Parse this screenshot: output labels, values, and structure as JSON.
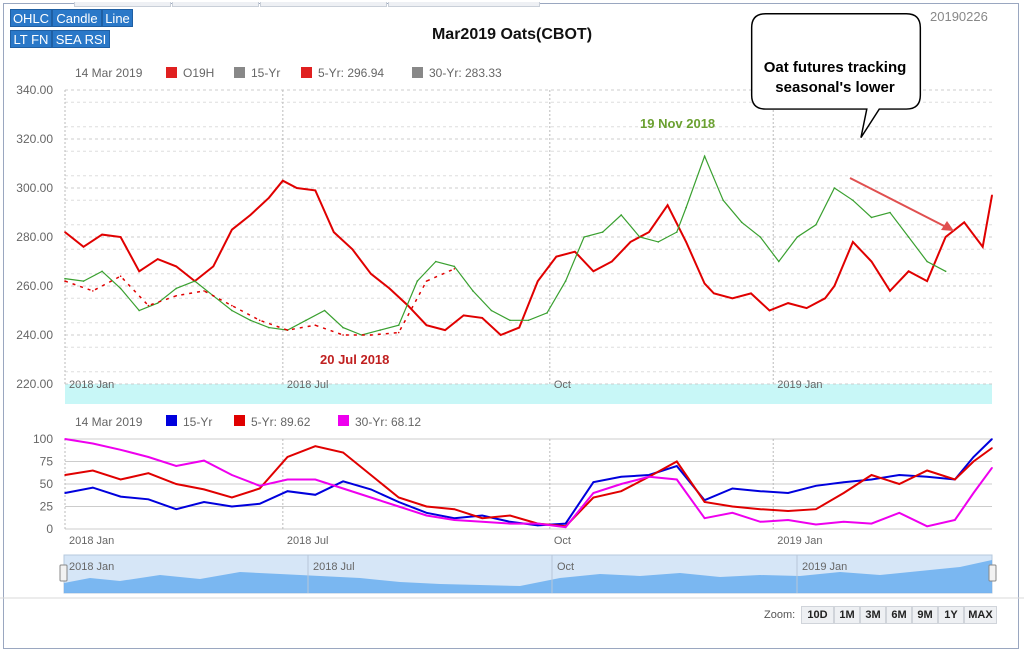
{
  "toolbar": {
    "row1": [
      "OHLC",
      "Candle",
      "Line"
    ],
    "row2": [
      "LT FN",
      "SEA RSI"
    ]
  },
  "title": "Mar2019 Oats(CBOT)",
  "date_code": "20190226",
  "callout": {
    "line1": "Oat futures tracking",
    "line2": "seasonal's lower"
  },
  "zoom": {
    "label": "Zoom:",
    "buttons": [
      "10D",
      "1M",
      "3M",
      "6M",
      "9M",
      "1Y",
      "MAX"
    ]
  },
  "chart_data": [
    {
      "type": "line",
      "panel": "price",
      "legend": {
        "date": "14 Mar 2019",
        "items": [
          {
            "label": "O19H",
            "color": "#e02020"
          },
          {
            "label": "15-Yr",
            "color": "#888888"
          },
          {
            "label": "5-Yr: 296.94",
            "color": "#e02020"
          },
          {
            "label": "30-Yr: 283.33",
            "color": "#888888"
          }
        ]
      },
      "y_ticks": [
        "340.00",
        "320.00",
        "300.00",
        "280.00",
        "260.00",
        "240.00",
        "220.00"
      ],
      "ylim": [
        220,
        340
      ],
      "x_ticks": [
        {
          "label": "2018 Jan",
          "x": 0
        },
        {
          "label": "2018 Jul",
          "x": 0.235
        },
        {
          "label": "Oct",
          "x": 0.523
        },
        {
          "label": "2019 Jan",
          "x": 0.764
        }
      ],
      "annotations": [
        {
          "text": "20 Jul 2018",
          "color": "#c02020"
        },
        {
          "text": "19 Nov 2018",
          "color": "#6aa030"
        }
      ],
      "series": [
        {
          "name": "5-Yr",
          "color": "#e00000",
          "x": [
            0,
            0.02,
            0.04,
            0.06,
            0.08,
            0.1,
            0.12,
            0.14,
            0.16,
            0.18,
            0.2,
            0.22,
            0.235,
            0.25,
            0.27,
            0.29,
            0.31,
            0.33,
            0.35,
            0.37,
            0.39,
            0.41,
            0.43,
            0.45,
            0.47,
            0.49,
            0.51,
            0.53,
            0.55,
            0.57,
            0.59,
            0.61,
            0.63,
            0.65,
            0.67,
            0.69,
            0.7,
            0.72,
            0.74,
            0.76,
            0.78,
            0.8,
            0.82,
            0.83,
            0.85,
            0.87,
            0.89,
            0.91,
            0.93,
            0.95,
            0.97,
            0.99,
            1.0
          ],
          "y": [
            282,
            276,
            281,
            280,
            266,
            271,
            268,
            262,
            268,
            283,
            289,
            296,
            303,
            300,
            299,
            282,
            275,
            265,
            259,
            252,
            244,
            242,
            248,
            247,
            240,
            243,
            262,
            272,
            274,
            266,
            270,
            278,
            282,
            293,
            278,
            261,
            257,
            255,
            257,
            250,
            253,
            251,
            255,
            260,
            278,
            270,
            258,
            266,
            262,
            280,
            286,
            276,
            297
          ]
        },
        {
          "name": "O19H",
          "color": "#3aa030",
          "x": [
            0.0,
            0.02,
            0.04,
            0.06,
            0.08,
            0.1,
            0.12,
            0.14,
            0.16,
            0.18,
            0.2,
            0.22,
            0.24,
            0.26,
            0.28,
            0.3,
            0.32,
            0.34,
            0.36,
            0.38,
            0.4,
            0.42,
            0.44,
            0.46,
            0.48,
            0.5,
            0.52,
            0.54,
            0.56,
            0.58,
            0.6,
            0.62,
            0.64,
            0.66,
            0.67,
            0.69,
            0.71,
            0.73,
            0.75,
            0.77,
            0.79,
            0.81,
            0.83,
            0.85,
            0.87,
            0.89,
            0.91,
            0.93,
            0.95
          ],
          "y": [
            263,
            262,
            266,
            259,
            250,
            253,
            259,
            262,
            256,
            250,
            246,
            243,
            242,
            246,
            250,
            243,
            240,
            242,
            244,
            262,
            270,
            268,
            258,
            250,
            246,
            246,
            249,
            262,
            280,
            282,
            289,
            280,
            278,
            282,
            292,
            313,
            295,
            286,
            280,
            270,
            280,
            285,
            300,
            295,
            288,
            290,
            280,
            270,
            266
          ]
        },
        {
          "name": "30-Yr",
          "color": "#e00000",
          "x": [
            0.0,
            0.03,
            0.06,
            0.09,
            0.12,
            0.15,
            0.18,
            0.21,
            0.24,
            0.27,
            0.3,
            0.33,
            0.36,
            0.39,
            0.42
          ],
          "y": [
            262,
            258,
            264,
            252,
            256,
            258,
            252,
            246,
            242,
            244,
            240,
            240,
            241,
            262,
            267
          ]
        }
      ]
    },
    {
      "type": "line",
      "panel": "seasonal-rsi",
      "legend": {
        "date": "14 Mar 2019",
        "items": [
          {
            "label": "15-Yr",
            "color": "#0000dd"
          },
          {
            "label": "5-Yr: 89.62",
            "color": "#e00000"
          },
          {
            "label": "30-Yr: 68.12",
            "color": "#ee00ee"
          }
        ]
      },
      "y_ticks": [
        "100",
        "75",
        "50",
        "25",
        "0"
      ],
      "ylim": [
        0,
        100
      ],
      "series": [
        {
          "name": "15-Yr",
          "color": "#0000dd",
          "x": [
            0,
            0.03,
            0.06,
            0.09,
            0.12,
            0.15,
            0.18,
            0.21,
            0.24,
            0.27,
            0.3,
            0.33,
            0.36,
            0.39,
            0.42,
            0.45,
            0.48,
            0.51,
            0.54,
            0.57,
            0.6,
            0.63,
            0.66,
            0.69,
            0.72,
            0.75,
            0.78,
            0.81,
            0.84,
            0.87,
            0.9,
            0.93,
            0.96,
            0.98,
            1.0
          ],
          "y": [
            40,
            46,
            36,
            33,
            22,
            30,
            25,
            28,
            42,
            38,
            53,
            44,
            30,
            18,
            12,
            15,
            8,
            4,
            6,
            52,
            58,
            60,
            70,
            32,
            45,
            42,
            40,
            48,
            52,
            55,
            60,
            58,
            55,
            80,
            100
          ]
        },
        {
          "name": "5-Yr",
          "color": "#e00000",
          "x": [
            0,
            0.03,
            0.06,
            0.09,
            0.12,
            0.15,
            0.18,
            0.21,
            0.24,
            0.27,
            0.3,
            0.33,
            0.36,
            0.39,
            0.42,
            0.45,
            0.48,
            0.51,
            0.54,
            0.57,
            0.6,
            0.63,
            0.66,
            0.69,
            0.72,
            0.75,
            0.78,
            0.81,
            0.84,
            0.87,
            0.9,
            0.93,
            0.96,
            0.98,
            1.0
          ],
          "y": [
            60,
            65,
            55,
            62,
            50,
            44,
            35,
            45,
            80,
            92,
            85,
            60,
            35,
            25,
            22,
            12,
            15,
            6,
            3,
            35,
            42,
            58,
            75,
            30,
            25,
            22,
            20,
            22,
            40,
            60,
            50,
            65,
            55,
            75,
            90
          ]
        },
        {
          "name": "30-Yr",
          "color": "#ee00ee",
          "x": [
            0,
            0.03,
            0.06,
            0.09,
            0.12,
            0.15,
            0.18,
            0.21,
            0.24,
            0.27,
            0.3,
            0.33,
            0.36,
            0.39,
            0.42,
            0.45,
            0.48,
            0.51,
            0.54,
            0.57,
            0.6,
            0.63,
            0.66,
            0.69,
            0.72,
            0.75,
            0.78,
            0.81,
            0.84,
            0.87,
            0.9,
            0.93,
            0.96,
            0.98,
            1.0
          ],
          "y": [
            100,
            95,
            88,
            80,
            70,
            76,
            60,
            48,
            55,
            55,
            45,
            35,
            25,
            15,
            10,
            8,
            6,
            6,
            2,
            40,
            50,
            58,
            55,
            12,
            18,
            8,
            10,
            5,
            8,
            6,
            18,
            3,
            10,
            40,
            68
          ]
        }
      ]
    }
  ],
  "navigator": {
    "labels": [
      "2018 Jan",
      "2018 Jul",
      "Oct",
      "2019 Jan"
    ]
  }
}
